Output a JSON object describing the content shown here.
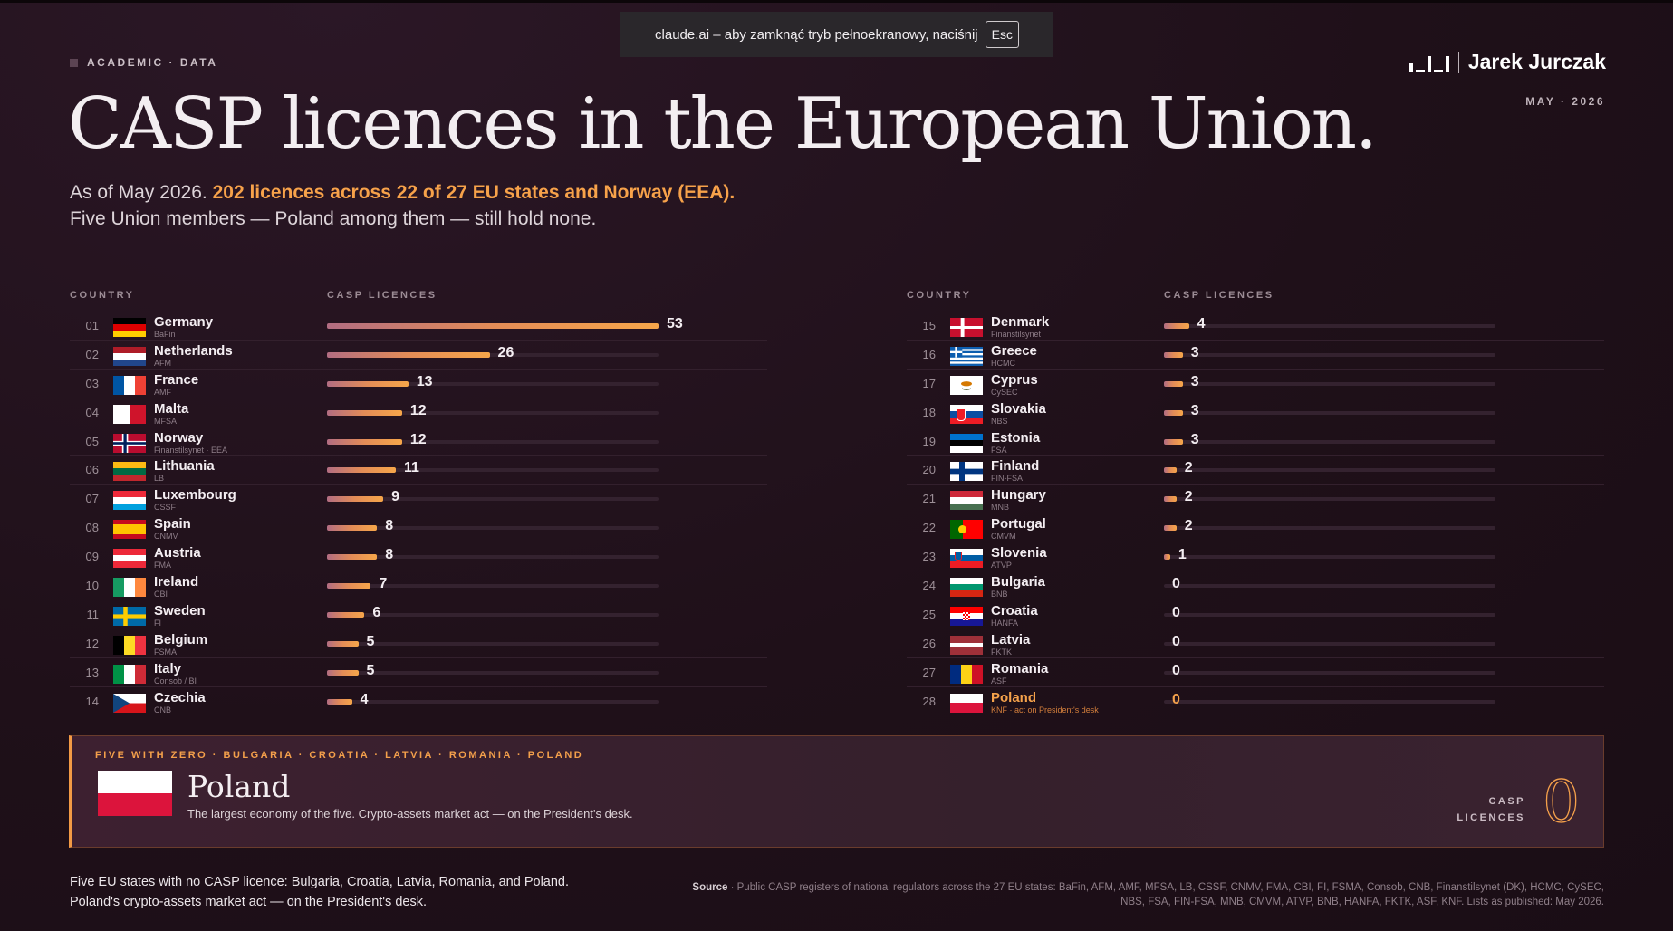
{
  "browser_toast": {
    "text": "claude.ai – aby zamknąć tryb pełnoekranowy, naciśnij",
    "key": "Esc"
  },
  "eyebrow": "ACADEMIC · DATA",
  "brand": "Jarek Jurczak",
  "date": "MAY · 2026",
  "title": "CASP licences in the European Union.",
  "subtitle": {
    "lead": "As of May 2026.",
    "highlight": "202 licences across 22 of 27 EU states and Norway (EEA).",
    "line2": "Five Union members — Poland among them — still hold none."
  },
  "headers": {
    "country": "COUNTRY",
    "licences": "CASP LICENCES"
  },
  "colors": {
    "accent": "#f5a24b",
    "background": "#1f1019",
    "bar_start": "#b26d82",
    "bar_end": "#f6a64a"
  },
  "chart_data": {
    "type": "bar",
    "xlabel": "CASP LICENCES",
    "xlim": [
      0,
      53
    ],
    "rows": [
      {
        "rank": "01",
        "country": "Germany",
        "regulator": "BaFin",
        "value": 53,
        "flag": "de"
      },
      {
        "rank": "02",
        "country": "Netherlands",
        "regulator": "AFM",
        "value": 26,
        "flag": "nl"
      },
      {
        "rank": "03",
        "country": "France",
        "regulator": "AMF",
        "value": 13,
        "flag": "fr"
      },
      {
        "rank": "04",
        "country": "Malta",
        "regulator": "MFSA",
        "value": 12,
        "flag": "mt"
      },
      {
        "rank": "05",
        "country": "Norway",
        "regulator": "Finanstilsynet · EEA",
        "value": 12,
        "flag": "no"
      },
      {
        "rank": "06",
        "country": "Lithuania",
        "regulator": "LB",
        "value": 11,
        "flag": "lt"
      },
      {
        "rank": "07",
        "country": "Luxembourg",
        "regulator": "CSSF",
        "value": 9,
        "flag": "lu"
      },
      {
        "rank": "08",
        "country": "Spain",
        "regulator": "CNMV",
        "value": 8,
        "flag": "es"
      },
      {
        "rank": "09",
        "country": "Austria",
        "regulator": "FMA",
        "value": 8,
        "flag": "at"
      },
      {
        "rank": "10",
        "country": "Ireland",
        "regulator": "CBI",
        "value": 7,
        "flag": "ie"
      },
      {
        "rank": "11",
        "country": "Sweden",
        "regulator": "FI",
        "value": 6,
        "flag": "se"
      },
      {
        "rank": "12",
        "country": "Belgium",
        "regulator": "FSMA",
        "value": 5,
        "flag": "be"
      },
      {
        "rank": "13",
        "country": "Italy",
        "regulator": "Consob / BI",
        "value": 5,
        "flag": "it"
      },
      {
        "rank": "14",
        "country": "Czechia",
        "regulator": "CNB",
        "value": 4,
        "flag": "cz"
      },
      {
        "rank": "15",
        "country": "Denmark",
        "regulator": "Finanstilsynet",
        "value": 4,
        "flag": "dk"
      },
      {
        "rank": "16",
        "country": "Greece",
        "regulator": "HCMC",
        "value": 3,
        "flag": "gr"
      },
      {
        "rank": "17",
        "country": "Cyprus",
        "regulator": "CySEC",
        "value": 3,
        "flag": "cy"
      },
      {
        "rank": "18",
        "country": "Slovakia",
        "regulator": "NBS",
        "value": 3,
        "flag": "sk"
      },
      {
        "rank": "19",
        "country": "Estonia",
        "regulator": "FSA",
        "value": 3,
        "flag": "ee"
      },
      {
        "rank": "20",
        "country": "Finland",
        "regulator": "FIN-FSA",
        "value": 2,
        "flag": "fi"
      },
      {
        "rank": "21",
        "country": "Hungary",
        "regulator": "MNB",
        "value": 2,
        "flag": "hu"
      },
      {
        "rank": "22",
        "country": "Portugal",
        "regulator": "CMVM",
        "value": 2,
        "flag": "pt"
      },
      {
        "rank": "23",
        "country": "Slovenia",
        "regulator": "ATVP",
        "value": 1,
        "flag": "si"
      },
      {
        "rank": "24",
        "country": "Bulgaria",
        "regulator": "BNB",
        "value": 0,
        "flag": "bg"
      },
      {
        "rank": "25",
        "country": "Croatia",
        "regulator": "HANFA",
        "value": 0,
        "flag": "hr"
      },
      {
        "rank": "26",
        "country": "Latvia",
        "regulator": "FKTK",
        "value": 0,
        "flag": "lv"
      },
      {
        "rank": "27",
        "country": "Romania",
        "regulator": "ASF",
        "value": 0,
        "flag": "ro"
      },
      {
        "rank": "28",
        "country": "Poland",
        "regulator": "KNF · act on President's desk",
        "value": 0,
        "flag": "pl",
        "highlight": true
      }
    ]
  },
  "panel": {
    "kicker": "FIVE WITH ZERO · BULGARIA · CROATIA · LATVIA · ROMANIA · POLAND",
    "country": "Poland",
    "description": "The largest economy of the five. Crypto-assets market act — on the President's desk.",
    "label_line1": "CASP",
    "label_line2": "LICENCES",
    "value": "0"
  },
  "footer": {
    "line1": "Five EU states with no CASP licence: Bulgaria, Croatia, Latvia, Romania, and Poland.",
    "line2": "Poland's crypto-assets market act — on the President's desk."
  },
  "source": {
    "label": "Source",
    "text": " · Public CASP registers of national regulators across the 27 EU states: BaFin, AFM, AMF, MFSA, LB, CSSF, CNMV, FMA, CBI, FI, FSMA, Consob, CNB, Finanstilsynet (DK), HCMC, CySEC, NBS, FSA, FIN-FSA, MNB, CMVM, ATVP, BNB, HANFA, FKTK, ASF, KNF. Lists as published: May 2026."
  }
}
